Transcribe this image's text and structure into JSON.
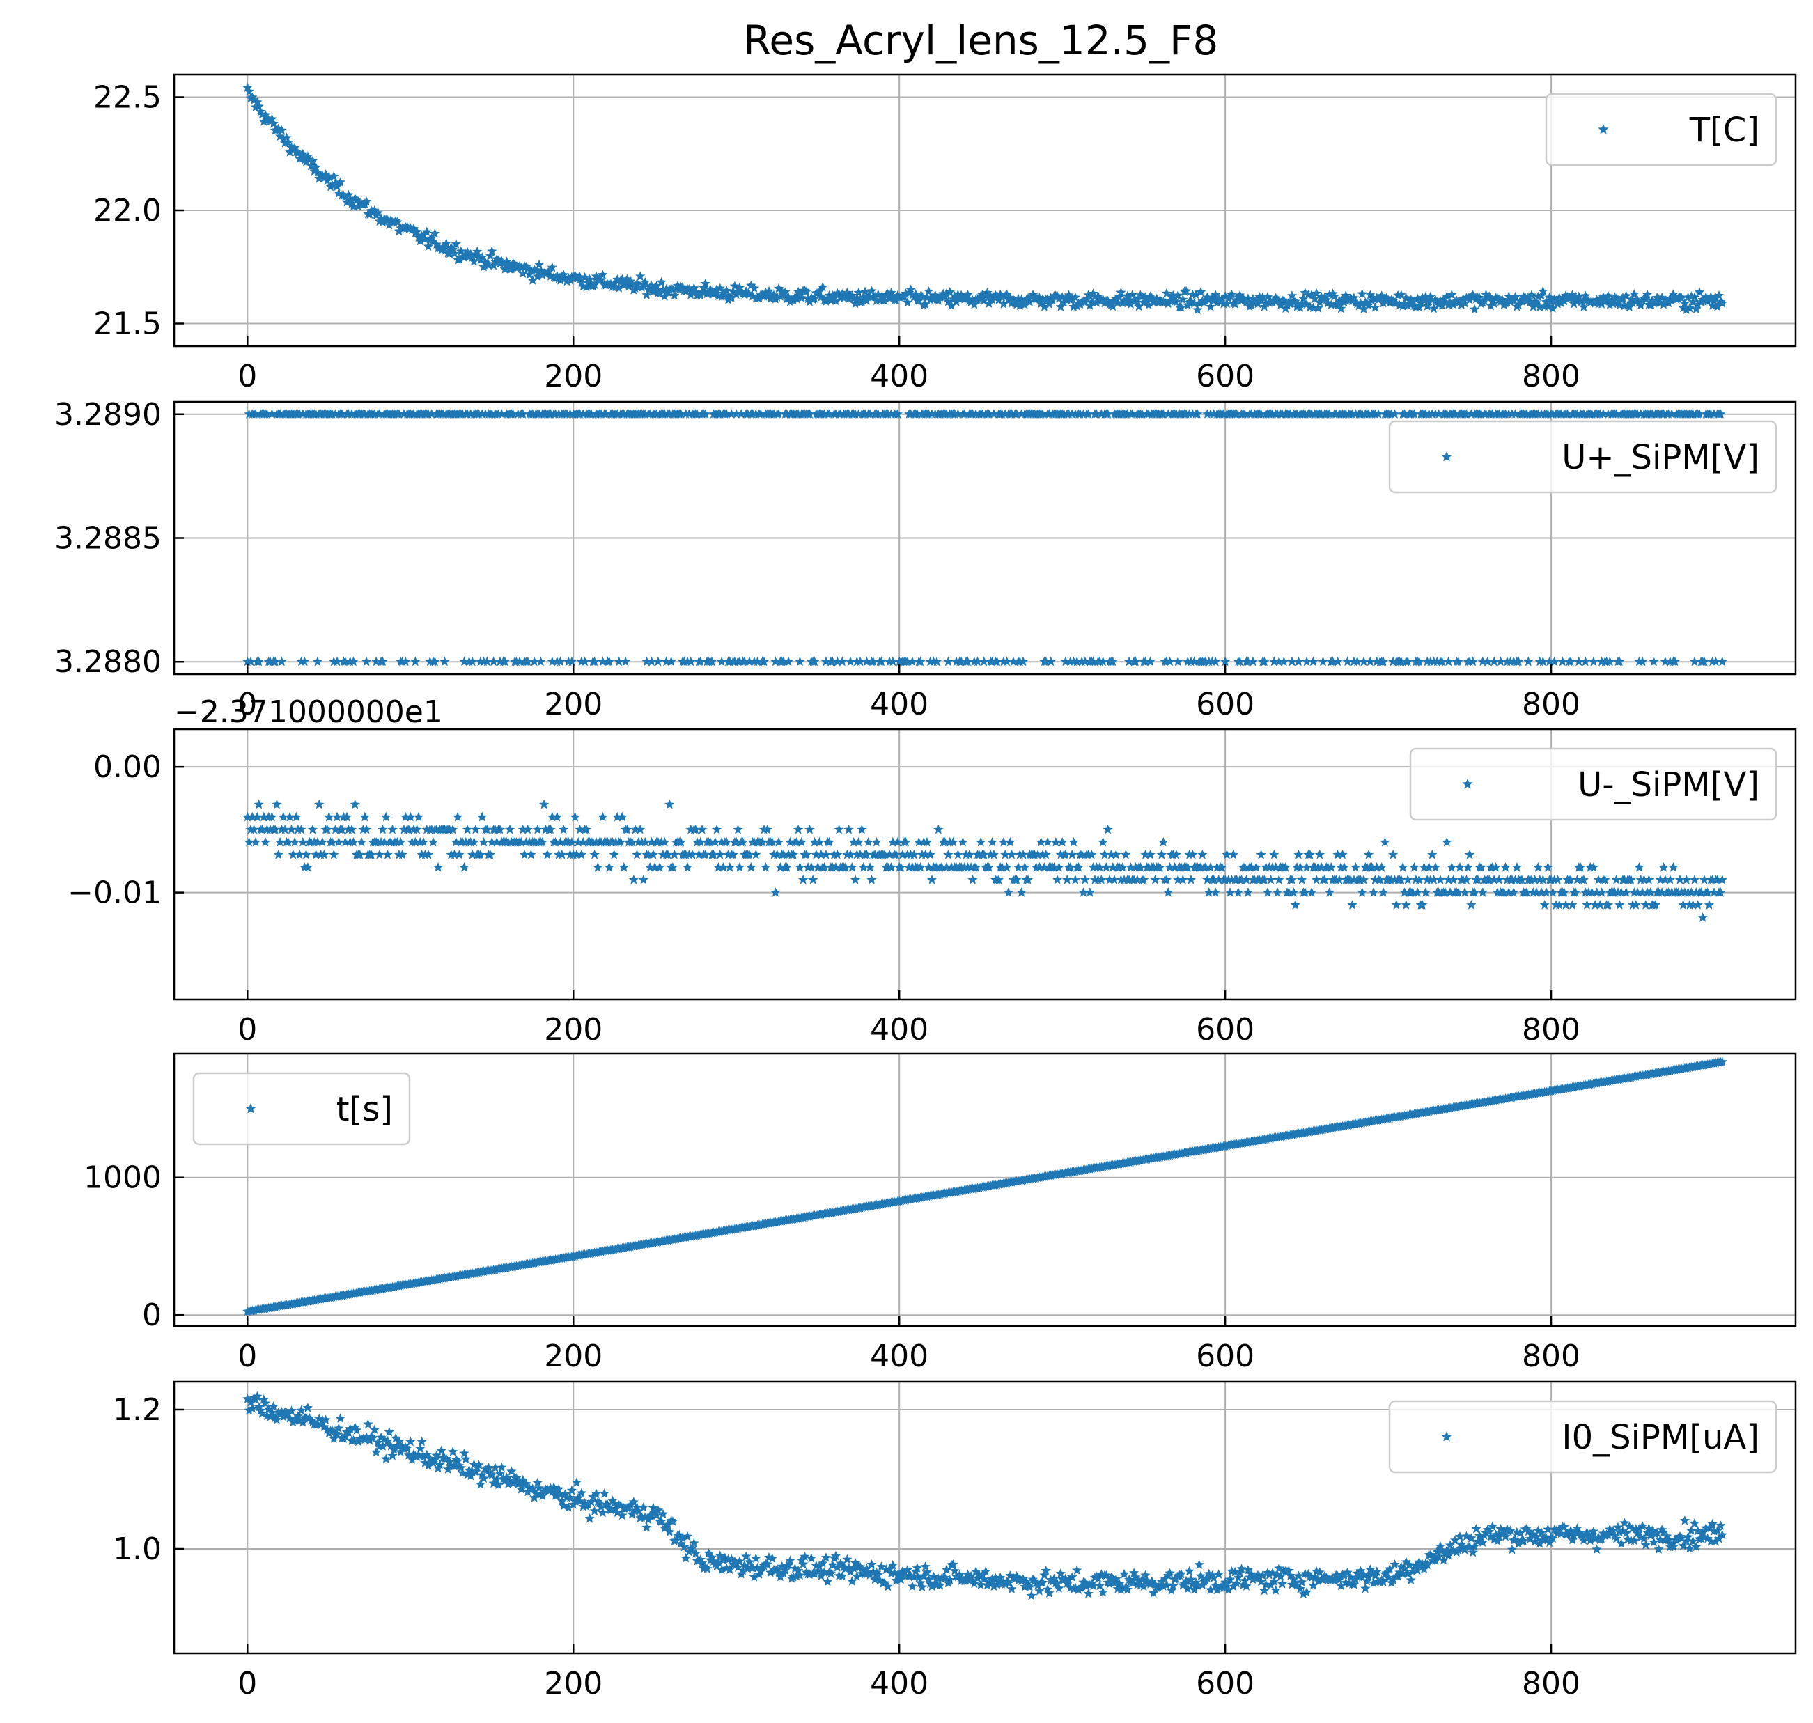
{
  "title": "Res_Acryl_lens_12.5_F8",
  "colors": {
    "marker": "#1f77b4",
    "grid": "#b0b0b0",
    "frame": "#000000",
    "legend_border": "#cccccc"
  },
  "chart_data": [
    {
      "type": "scatter",
      "marker": "star",
      "series": [
        {
          "name": "T[C]"
        }
      ],
      "x_range": [
        0,
        905
      ],
      "xlim": [
        -45,
        950
      ],
      "ylim": [
        21.4,
        22.6
      ],
      "xticks": [
        0,
        200,
        400,
        600,
        800
      ],
      "xticklabels": [
        "0",
        "200",
        "400",
        "600",
        "800"
      ],
      "yticks": [
        21.5,
        22.0,
        22.5
      ],
      "yticklabels": [
        "21.5",
        "22.0",
        "22.5"
      ],
      "trend": {
        "kind": "exp_decay",
        "start": 22.52,
        "end": 21.6,
        "tau": 90,
        "noise": 0.05
      },
      "legend_loc": "upper right",
      "grid": true
    },
    {
      "type": "scatter",
      "marker": "star",
      "series": [
        {
          "name": "U+_SiPM[V]"
        }
      ],
      "x_range": [
        0,
        905
      ],
      "xlim": [
        -45,
        950
      ],
      "ylim": [
        3.28795,
        3.28905
      ],
      "xticks": [
        0,
        200,
        400,
        600,
        800
      ],
      "xticklabels": [
        "0",
        "200",
        "400",
        "600",
        "800"
      ],
      "yticks": [
        3.288,
        3.2885,
        3.289
      ],
      "yticklabels": [
        "3.2880",
        "3.2885",
        "3.2890"
      ],
      "levels": [
        3.289,
        3.288
      ],
      "level_probability": [
        0.7,
        0.3
      ],
      "legend_loc": "upper right",
      "grid": true
    },
    {
      "type": "scatter",
      "marker": "star",
      "series": [
        {
          "name": "U-_SiPM[V]"
        }
      ],
      "x_range": [
        0,
        905
      ],
      "xlim": [
        -45,
        950
      ],
      "ylim": [
        -0.0185,
        0.003
      ],
      "xticks": [
        0,
        200,
        400,
        600,
        800
      ],
      "xticklabels": [
        "0",
        "200",
        "400",
        "600",
        "800"
      ],
      "yticks": [
        0.0,
        -0.01
      ],
      "yticklabels": [
        "0.00",
        "−0.01"
      ],
      "offset_text": "−2.371000000e1",
      "trend": {
        "kind": "linear",
        "start": -0.005,
        "end": -0.01,
        "noise": 0.003,
        "quantum": 0.001,
        "min": -0.018,
        "max": 0.002
      },
      "legend_loc": "upper right",
      "grid": true
    },
    {
      "type": "scatter",
      "marker": "star",
      "series": [
        {
          "name": "t[s]"
        }
      ],
      "x_range": [
        0,
        905
      ],
      "xlim": [
        -45,
        950
      ],
      "ylim": [
        -80,
        1900
      ],
      "xticks": [
        0,
        200,
        400,
        600,
        800
      ],
      "xticklabels": [
        "0",
        "200",
        "400",
        "600",
        "800"
      ],
      "yticks": [
        0,
        1000
      ],
      "yticklabels": [
        "0",
        "1000"
      ],
      "trend": {
        "kind": "linear",
        "start": 25,
        "end": 1840,
        "noise": 0
      },
      "legend_loc": "upper left",
      "grid": true
    },
    {
      "type": "scatter",
      "marker": "star",
      "series": [
        {
          "name": "I0_SiPM[uA]"
        }
      ],
      "x_range": [
        0,
        905
      ],
      "xlim": [
        -45,
        950
      ],
      "ylim": [
        0.85,
        1.24
      ],
      "xticks": [
        0,
        200,
        400,
        600,
        800
      ],
      "xticklabels": [
        "0",
        "200",
        "400",
        "600",
        "800"
      ],
      "yticks": [
        1.0,
        1.2
      ],
      "yticklabels": [
        "1.0",
        "1.2"
      ],
      "trend": {
        "kind": "piecewise",
        "points": [
          [
            0,
            1.21
          ],
          [
            100,
            1.14
          ],
          [
            200,
            1.07
          ],
          [
            250,
            1.05
          ],
          [
            280,
            0.98
          ],
          [
            500,
            0.95
          ],
          [
            700,
            0.96
          ],
          [
            760,
            1.02
          ],
          [
            905,
            1.02
          ]
        ],
        "noise": 0.025
      },
      "legend_loc": "upper right",
      "grid": true
    }
  ]
}
